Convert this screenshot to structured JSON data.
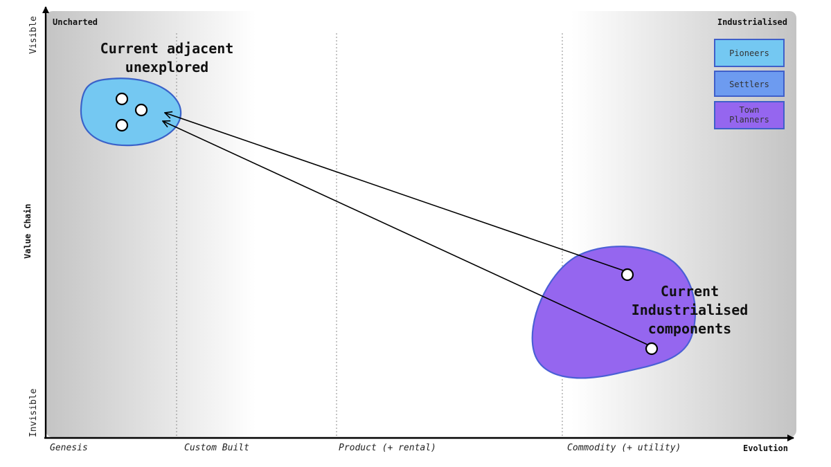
{
  "corners": {
    "top_left": "Uncharted",
    "top_right": "Industrialised"
  },
  "y_axis": {
    "label": "Value Chain",
    "top": "Visible",
    "bottom": "Invisible"
  },
  "x_axis": {
    "label": "Evolution",
    "stages": [
      "Genesis",
      "Custom Built",
      "Product (+ rental)",
      "Commodity (+ utility)"
    ]
  },
  "legend": [
    {
      "label": "Pioneers",
      "color": "#74c8f2"
    },
    {
      "label": "Settlers",
      "color": "#6d9bf0"
    },
    {
      "label": "Town\nPlanners",
      "color": "#9566ef"
    }
  ],
  "regions": {
    "adjacent": {
      "label": "Current adjacent\nunexplored",
      "color": "#74c8f2",
      "stroke": "#3a62c9"
    },
    "industrialised": {
      "label": "Current\nIndustrialised\ncomponents",
      "color": "#9566ef",
      "stroke": "#4a5fd6"
    }
  },
  "colors": {
    "background_edge": "#c4c4c4",
    "axis": "#000000"
  }
}
